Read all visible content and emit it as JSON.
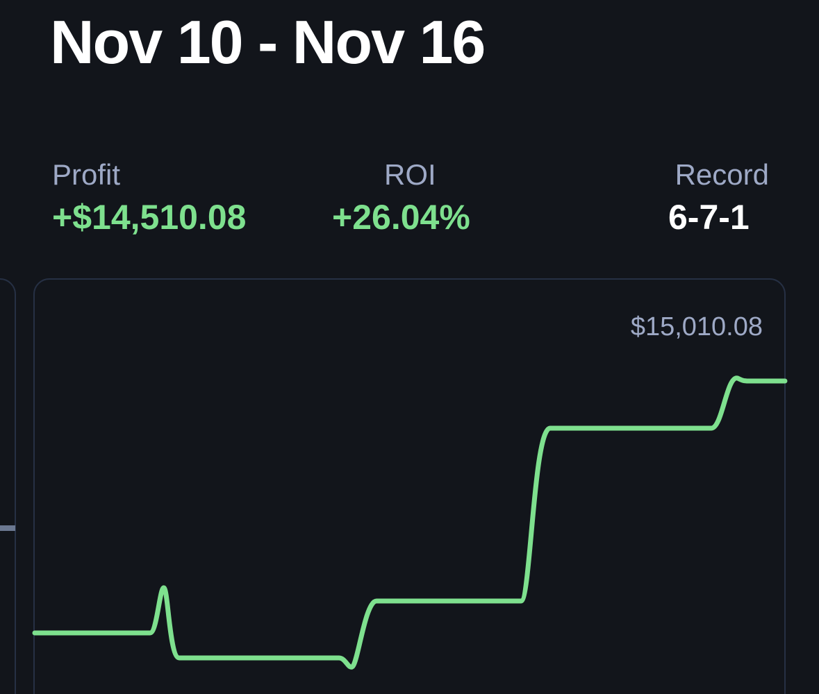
{
  "header": {
    "title": "Nov 10 - Nov 16"
  },
  "stats": [
    {
      "label": "Profit",
      "value": "+$14,510.08"
    },
    {
      "label": "ROI",
      "value": "+26.04%"
    },
    {
      "label": "Record",
      "value": "6-7-1"
    }
  ],
  "chart": {
    "max_label": "$15,010.08"
  }
}
